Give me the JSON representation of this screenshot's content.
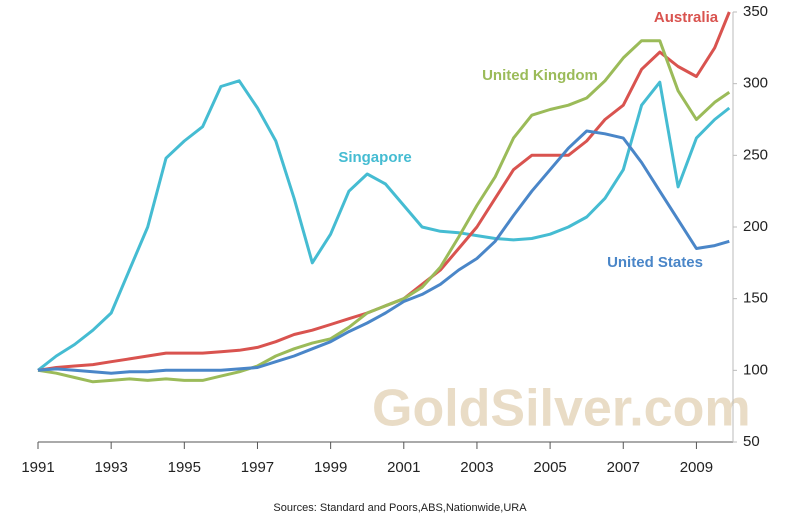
{
  "chart_data": {
    "type": "line",
    "source": "Sources: Standard and Poors,ABS,Nationwide,URA",
    "watermark": "GoldSilver.com",
    "x": [
      1991,
      1991.5,
      1992,
      1992.5,
      1993,
      1993.5,
      1994,
      1994.5,
      1995,
      1995.5,
      1996,
      1996.5,
      1997,
      1997.5,
      1998,
      1998.5,
      1999,
      1999.5,
      2000,
      2000.5,
      2001,
      2001.5,
      2002,
      2002.5,
      2003,
      2003.5,
      2004,
      2004.5,
      2005,
      2005.5,
      2006,
      2006.5,
      2007,
      2007.5,
      2008,
      2008.5,
      2009,
      2009.5,
      2009.9
    ],
    "series": [
      {
        "name": "Singapore",
        "color": "#45bcd2",
        "values": [
          100,
          110,
          118,
          128,
          140,
          170,
          200,
          248,
          260,
          270,
          298,
          302,
          283,
          260,
          220,
          175,
          195,
          225,
          237,
          230,
          215,
          200,
          197,
          196,
          194,
          192,
          191,
          192,
          195,
          200,
          207,
          220,
          240,
          285,
          301,
          228,
          262,
          275,
          283
        ]
      },
      {
        "name": "Australia",
        "color": "#d9534f",
        "values": [
          100,
          102,
          103,
          104,
          106,
          108,
          110,
          112,
          112,
          112,
          113,
          114,
          116,
          120,
          125,
          128,
          132,
          136,
          140,
          145,
          150,
          160,
          170,
          185,
          200,
          220,
          240,
          250,
          250,
          250,
          260,
          275,
          285,
          310,
          322,
          312,
          305,
          325,
          350
        ]
      },
      {
        "name": "United Kingdom",
        "color": "#9bbb59",
        "values": [
          100,
          98,
          95,
          92,
          93,
          94,
          93,
          94,
          93,
          93,
          96,
          99,
          103,
          110,
          115,
          119,
          122,
          130,
          140,
          145,
          150,
          158,
          172,
          193,
          215,
          235,
          262,
          278,
          282,
          285,
          290,
          302,
          318,
          330,
          330,
          295,
          275,
          287,
          294
        ]
      },
      {
        "name": "United States",
        "color": "#4a86c8",
        "values": [
          100,
          101,
          100,
          99,
          98,
          99,
          99,
          100,
          100,
          100,
          100,
          101,
          102,
          106,
          110,
          115,
          120,
          127,
          133,
          140,
          148,
          153,
          160,
          170,
          178,
          190,
          208,
          225,
          240,
          255,
          267,
          265,
          262,
          245,
          225,
          205,
          185,
          187,
          190
        ]
      }
    ],
    "xlim": [
      1991,
      2010
    ],
    "xticks": [
      1991,
      1993,
      1995,
      1997,
      1999,
      2001,
      2003,
      2005,
      2007,
      2009
    ],
    "ylim": [
      50,
      350
    ],
    "yticks": [
      50,
      100,
      150,
      200,
      250,
      300,
      350
    ]
  }
}
